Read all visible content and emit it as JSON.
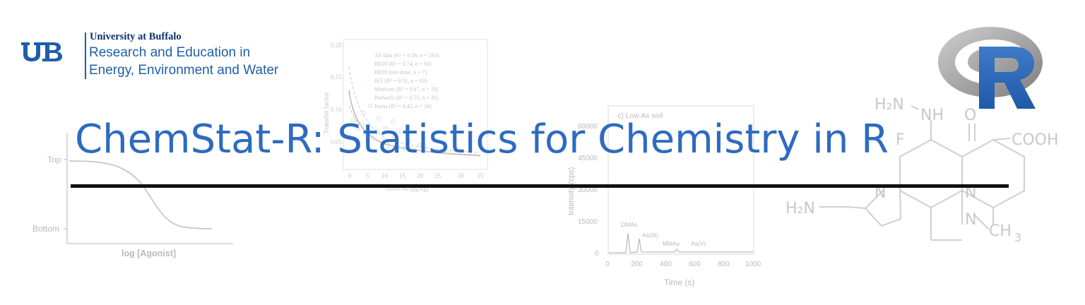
{
  "org": {
    "name": "University at Buffalo",
    "line1": "Research and Education in",
    "line2": "Energy, Environment and Water"
  },
  "title": "ChemStat-R:  Statistics for Chemistry in R",
  "colors": {
    "title_blue": "#2e6bc0",
    "ub_blue": "#1f5fa8",
    "ub_navy": "#0d2f6b",
    "rule_black": "#111111",
    "r_logo_blue": "#2a67b8",
    "r_logo_gray": "#8c8c8c"
  },
  "icons": {
    "ub_monogram": "ub-monogram-icon",
    "r_logo": "r-logo-icon"
  },
  "bg_dose_response": {
    "y_top": "Top",
    "y_bottom": "Bottom",
    "xlabel": "log [Agonist]"
  },
  "bg_transfer": {
    "ylabel": "Transfer factor",
    "y_ticks": [
      "0.20",
      "0.15",
      "0.10",
      "0.05"
    ],
    "x_ticks": [
      "0",
      "5",
      "10",
      "15",
      "20",
      "25",
      "30",
      "35"
    ],
    "xlabel": "Shoot As (μg/kg)",
    "legend": [
      "All data  (R² = 0.56, n = 263)",
      "BR28      (R² = 0.74, n = 84)",
      "BR29      (not done, n = 7)",
      "IET       (R² = 0.31, n = 83)",
      "Minicate  (R² = 0.67, n = 19)",
      "Purbachi  (R² = 0.75, n = 36)",
      "Ratna     (R² = 0.42, n = 34)"
    ]
  },
  "bg_chromatogram": {
    "title": "c) Low As soil",
    "ylabel": "Intensity (cps)",
    "y_ticks": [
      "60000",
      "45000",
      "30000",
      "15000",
      "0"
    ],
    "x_ticks": [
      "0",
      "200",
      "400",
      "600",
      "800",
      "1000"
    ],
    "xlabel": "Time (s)",
    "peaks": [
      "DMAs",
      "As(III)",
      "MMAs",
      "As(V)"
    ]
  },
  "bg_molecule": {
    "labels": [
      "H₂N",
      "NH",
      "O",
      "F",
      "COOH",
      "N",
      "H₂N",
      "N",
      "N",
      "CH",
      "3"
    ]
  }
}
